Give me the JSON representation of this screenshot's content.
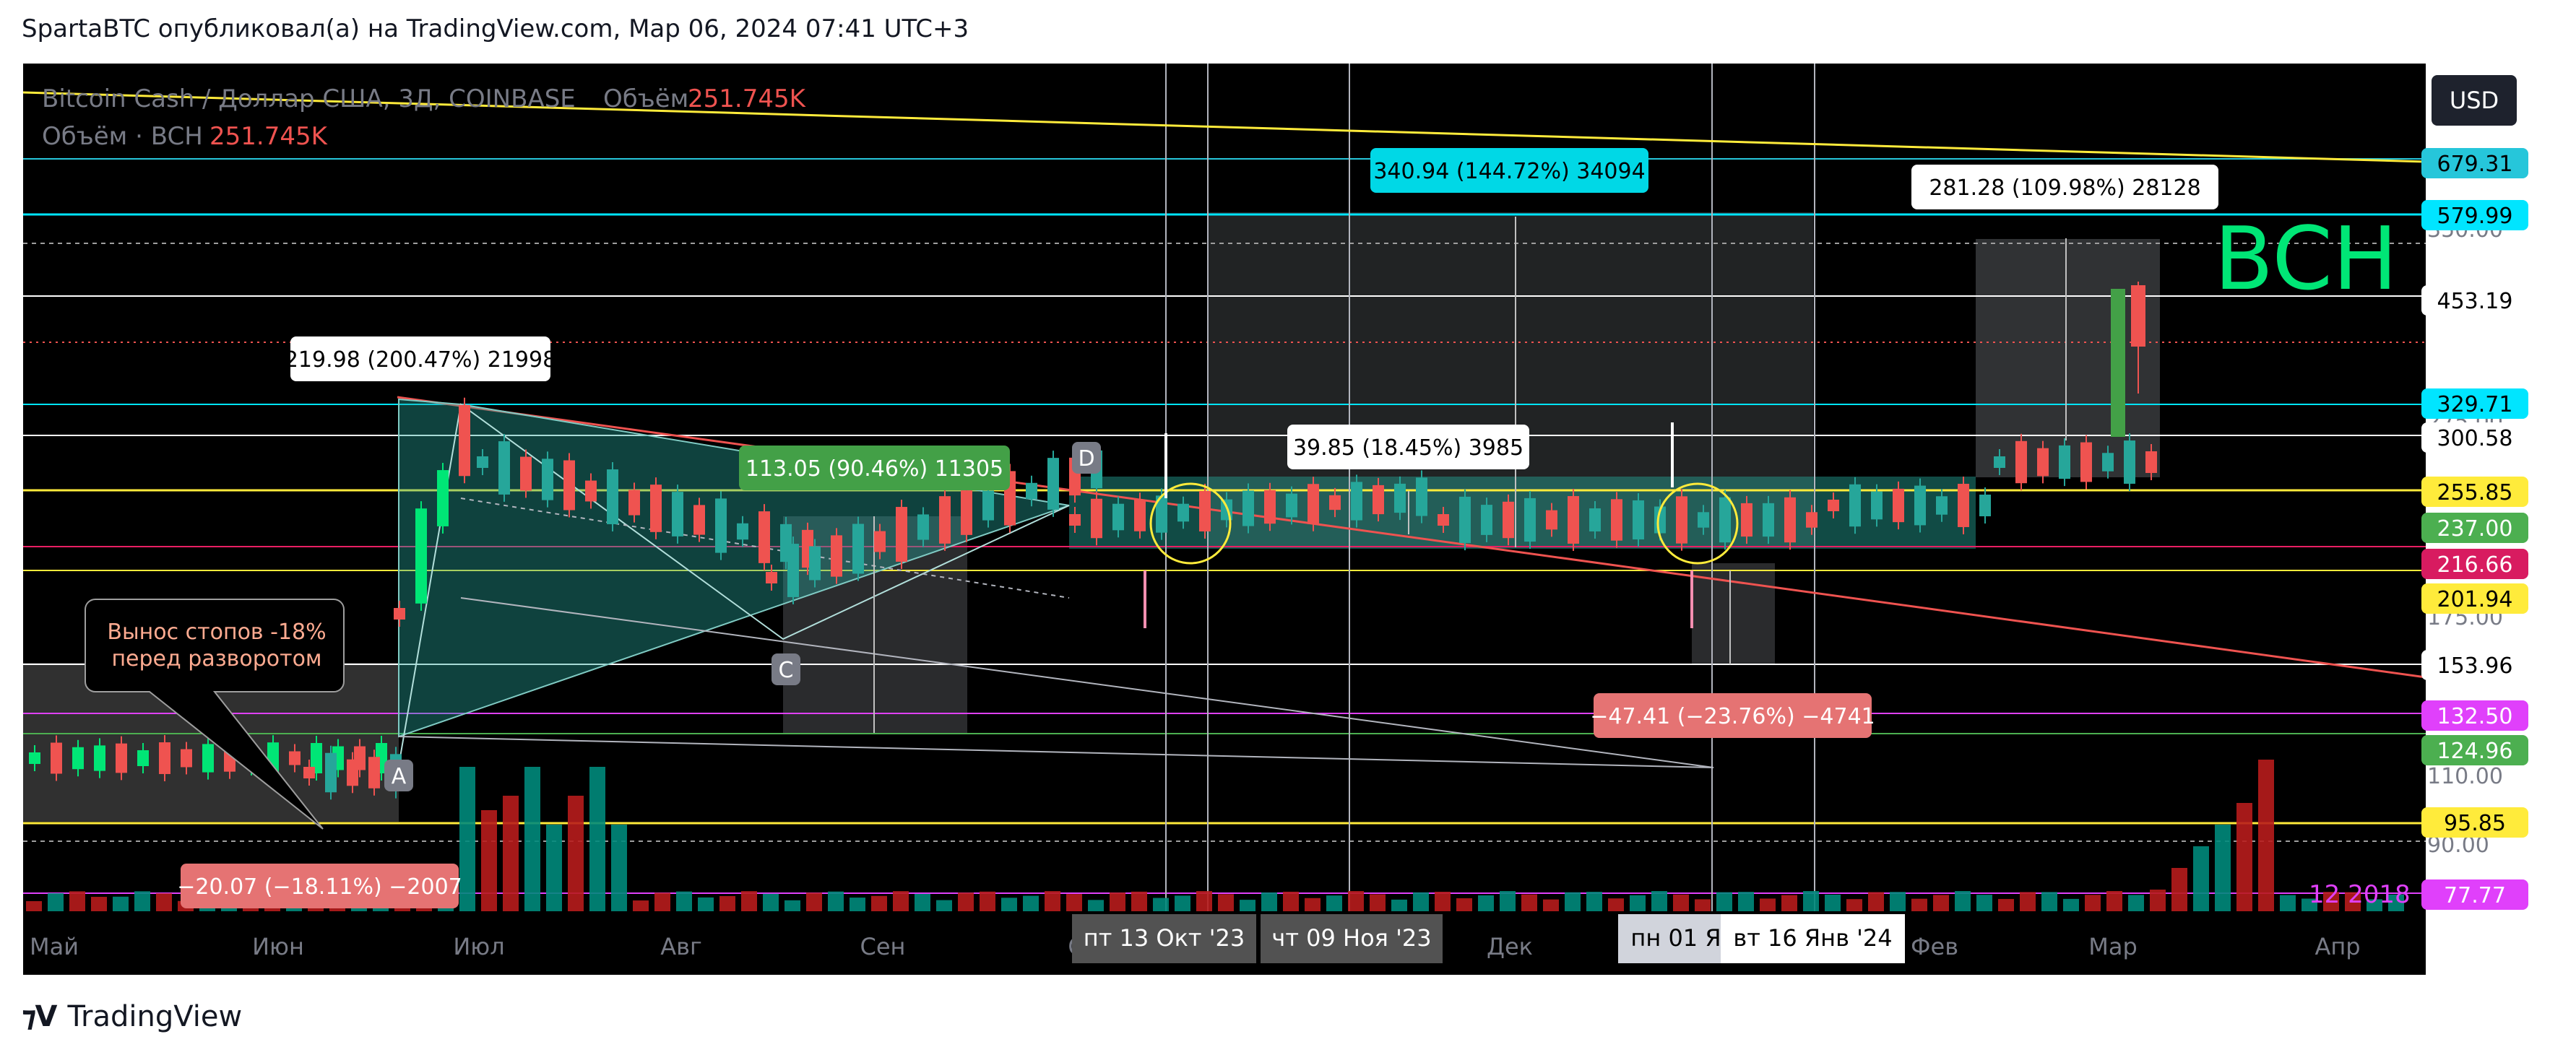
{
  "header": "SpartaBTC опубликовал(а) на TradingView.com, Мар 06, 2024 07:41 UTC+3",
  "footer_brand": "TradingView",
  "currency_button": "USD",
  "legend": {
    "line1": "Bitcoin Cash / Доллар США, 3Д, COINBASE",
    "volume_word": "Объём",
    "volume_value": "251.745K",
    "line2": "Объём · BCH",
    "line2_value": "251.745K"
  },
  "chart_data": {
    "type": "candlestick",
    "symbol": "BCH",
    "x_ticks": [
      "Май",
      "Июн",
      "Июл",
      "Авг",
      "Сен",
      "Окт",
      "Ноя",
      "Дек",
      "Янв",
      "Фев",
      "Мар",
      "Апр"
    ],
    "y_ticks": [
      350.0,
      275.0,
      175.0,
      110.0,
      90.0
    ],
    "price_levels": [
      {
        "value": "679.31",
        "bg": "#26c6da",
        "fg": "#000000"
      },
      {
        "value": "579.99",
        "bg": "#00e5ff",
        "fg": "#000000"
      },
      {
        "value": "453.19",
        "bg": "#ffffff",
        "fg": "#000000"
      },
      {
        "value": "329.71",
        "bg": "#00e5ff",
        "fg": "#000000"
      },
      {
        "value": "300.58",
        "bg": "#ffffff",
        "fg": "#000000"
      },
      {
        "value": "255.85",
        "bg": "#ffeb3b",
        "fg": "#000000"
      },
      {
        "value": "237.00",
        "bg": "#4caf50",
        "fg": "#ffffff"
      },
      {
        "value": "216.66",
        "bg": "#d81b60",
        "fg": "#ffffff"
      },
      {
        "value": "201.94",
        "bg": "#ffeb3b",
        "fg": "#000000"
      },
      {
        "value": "153.96",
        "bg": "#ffffff",
        "fg": "#000000"
      },
      {
        "value": "132.50",
        "bg": "#e040fb",
        "fg": "#ffffff"
      },
      {
        "value": "124.96",
        "bg": "#4caf50",
        "fg": "#ffffff"
      },
      {
        "value": "95.85",
        "bg": "#ffeb3b",
        "fg": "#000000"
      },
      {
        "value": "77.77",
        "bg": "#e040fb",
        "fg": "#ffffff"
      }
    ],
    "level_note": "12 2018",
    "measurements": [
      {
        "text": "219.98 (200.47%) 21998",
        "bg": "#ffffff",
        "fg": "#000000"
      },
      {
        "text": "113.05 (90.46%) 11305",
        "bg": "#43a047",
        "fg": "#ffffff"
      },
      {
        "text": "340.94 (144.72%) 34094",
        "bg": "#00d8e6",
        "fg": "#000000"
      },
      {
        "text": "39.85 (18.45%) 3985",
        "bg": "#ffffff",
        "fg": "#000000"
      },
      {
        "text": "281.28 (109.98%) 28128",
        "bg": "#ffffff",
        "fg": "#000000"
      },
      {
        "text": "−47.41 (−23.76%) −4741",
        "bg": "#e57373",
        "fg": "#ffffff"
      },
      {
        "text": "−20.07 (−18.11%) −2007",
        "bg": "#e57373",
        "fg": "#ffffff"
      }
    ],
    "callout": [
      "Вынос стопов -18%",
      "перед разворотом"
    ],
    "pattern_points": [
      "A",
      "C",
      "D"
    ],
    "date_markers": [
      "пт 13 Окт '23",
      "чт 09 Ноя '23",
      "пн 01 Я",
      "вт 16 Янв '24"
    ],
    "watermark": "BCH",
    "colors": {
      "up": "#26a69a",
      "down": "#ef5350",
      "bright_up": "#00e676"
    }
  }
}
